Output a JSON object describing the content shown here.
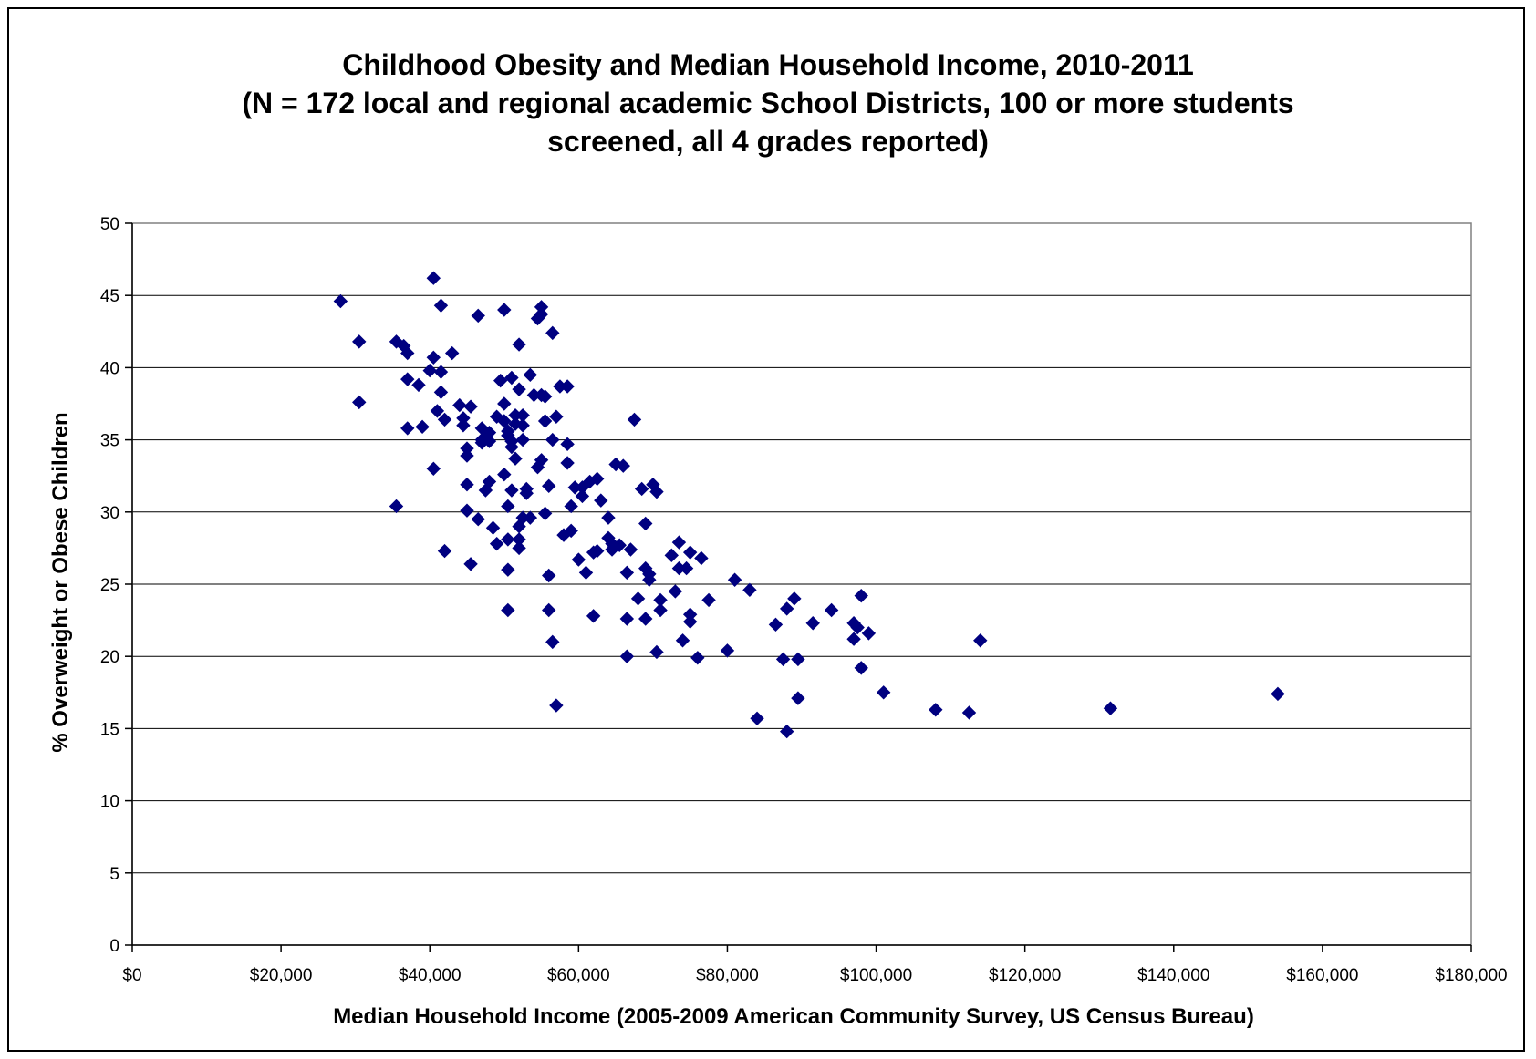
{
  "chart_data": {
    "type": "scatter",
    "title_lines": [
      "Childhood Obesity and Median Household Income, 2010-2011",
      "(N = 172 local and regional academic School Districts, 100 or more students",
      "screened, all 4 grades reported)"
    ],
    "xlabel": "Median Household Income (2005-2009 American Community Survey, US Census Bureau)",
    "ylabel": "% Overweight or Obese Children",
    "xlim": [
      0,
      180000
    ],
    "ylim": [
      0,
      50
    ],
    "x_ticks": [
      0,
      20000,
      40000,
      60000,
      80000,
      100000,
      120000,
      140000,
      160000,
      180000
    ],
    "x_tick_labels": [
      "$0",
      "$20,000",
      "$40,000",
      "$60,000",
      "$80,000",
      "$100,000",
      "$120,000",
      "$140,000",
      "$160,000",
      "$180,000"
    ],
    "y_ticks": [
      0,
      5,
      10,
      15,
      20,
      25,
      30,
      35,
      40,
      45,
      50
    ],
    "y_tick_labels": [
      "0",
      "5",
      "10",
      "15",
      "20",
      "25",
      "30",
      "35",
      "40",
      "45",
      "50"
    ],
    "grid": "horizontal",
    "marker_color": "#000080",
    "points": [
      [
        28000,
        44.6
      ],
      [
        30500,
        41.8
      ],
      [
        30500,
        37.6
      ],
      [
        35500,
        41.8
      ],
      [
        35500,
        30.4
      ],
      [
        36500,
        41.5
      ],
      [
        37000,
        41.0
      ],
      [
        37000,
        35.8
      ],
      [
        37000,
        39.2
      ],
      [
        38500,
        38.8
      ],
      [
        39000,
        35.9
      ],
      [
        40000,
        39.8
      ],
      [
        40500,
        40.7
      ],
      [
        40500,
        46.2
      ],
      [
        40500,
        33.0
      ],
      [
        41000,
        37.0
      ],
      [
        41500,
        39.7
      ],
      [
        41500,
        38.3
      ],
      [
        41500,
        44.3
      ],
      [
        42000,
        36.4
      ],
      [
        42000,
        27.3
      ],
      [
        43000,
        41.0
      ],
      [
        44000,
        37.4
      ],
      [
        44500,
        36.5
      ],
      [
        44500,
        36.0
      ],
      [
        45000,
        31.9
      ],
      [
        45000,
        30.1
      ],
      [
        45000,
        34.4
      ],
      [
        45000,
        33.9
      ],
      [
        45500,
        37.3
      ],
      [
        45500,
        26.4
      ],
      [
        46500,
        43.6
      ],
      [
        46500,
        29.5
      ],
      [
        47000,
        35.8
      ],
      [
        47000,
        35.0
      ],
      [
        47000,
        34.8
      ],
      [
        47500,
        35.2
      ],
      [
        47500,
        31.5
      ],
      [
        48000,
        34.9
      ],
      [
        48000,
        35.5
      ],
      [
        48000,
        32.1
      ],
      [
        48500,
        28.9
      ],
      [
        49000,
        27.8
      ],
      [
        49000,
        36.6
      ],
      [
        49500,
        39.1
      ],
      [
        50000,
        37.5
      ],
      [
        50000,
        36.3
      ],
      [
        50000,
        44.0
      ],
      [
        50000,
        32.6
      ],
      [
        50500,
        35.6
      ],
      [
        50500,
        35.3
      ],
      [
        50500,
        28.1
      ],
      [
        50500,
        26.0
      ],
      [
        50500,
        23.2
      ],
      [
        50500,
        30.4
      ],
      [
        51000,
        39.3
      ],
      [
        51000,
        34.9
      ],
      [
        51000,
        34.5
      ],
      [
        51000,
        31.5
      ],
      [
        51500,
        36.7
      ],
      [
        51500,
        33.7
      ],
      [
        51500,
        36.1
      ],
      [
        52000,
        29.0
      ],
      [
        52000,
        28.1
      ],
      [
        52000,
        27.5
      ],
      [
        52000,
        38.5
      ],
      [
        52000,
        41.6
      ],
      [
        52500,
        36.7
      ],
      [
        52500,
        36.0
      ],
      [
        52500,
        35.0
      ],
      [
        52500,
        29.6
      ],
      [
        53000,
        31.6
      ],
      [
        53000,
        31.3
      ],
      [
        53500,
        39.5
      ],
      [
        53500,
        29.6
      ],
      [
        54000,
        38.1
      ],
      [
        54500,
        43.4
      ],
      [
        54500,
        33.1
      ],
      [
        55000,
        38.1
      ],
      [
        55000,
        33.6
      ],
      [
        55000,
        44.2
      ],
      [
        55000,
        43.7
      ],
      [
        55500,
        38.0
      ],
      [
        55500,
        36.3
      ],
      [
        55500,
        29.9
      ],
      [
        56000,
        31.8
      ],
      [
        56000,
        25.6
      ],
      [
        56000,
        23.2
      ],
      [
        56500,
        42.4
      ],
      [
        56500,
        35.0
      ],
      [
        56500,
        21.0
      ],
      [
        57000,
        36.6
      ],
      [
        57000,
        16.6
      ],
      [
        57500,
        38.7
      ],
      [
        58000,
        28.4
      ],
      [
        58500,
        38.7
      ],
      [
        58500,
        34.7
      ],
      [
        58500,
        33.4
      ],
      [
        59000,
        28.7
      ],
      [
        59000,
        30.4
      ],
      [
        59500,
        31.7
      ],
      [
        60000,
        26.7
      ],
      [
        60500,
        31.7
      ],
      [
        60500,
        31.1
      ],
      [
        61000,
        25.8
      ],
      [
        61500,
        32.1
      ],
      [
        62000,
        27.2
      ],
      [
        62000,
        22.8
      ],
      [
        62500,
        27.3
      ],
      [
        62500,
        32.3
      ],
      [
        63000,
        30.8
      ],
      [
        64000,
        28.2
      ],
      [
        64000,
        29.6
      ],
      [
        64500,
        27.4
      ],
      [
        64500,
        27.8
      ],
      [
        65000,
        33.3
      ],
      [
        65500,
        27.7
      ],
      [
        66000,
        33.2
      ],
      [
        66500,
        25.8
      ],
      [
        66500,
        22.6
      ],
      [
        66500,
        20.0
      ],
      [
        67000,
        27.4
      ],
      [
        67500,
        36.4
      ],
      [
        68000,
        24.0
      ],
      [
        68500,
        31.6
      ],
      [
        69000,
        29.2
      ],
      [
        69000,
        26.1
      ],
      [
        69000,
        22.6
      ],
      [
        69500,
        25.3
      ],
      [
        69500,
        25.7
      ],
      [
        70000,
        31.9
      ],
      [
        70500,
        31.4
      ],
      [
        70500,
        20.3
      ],
      [
        71000,
        23.9
      ],
      [
        71000,
        23.2
      ],
      [
        72500,
        27.0
      ],
      [
        73000,
        24.5
      ],
      [
        73500,
        27.9
      ],
      [
        73500,
        26.1
      ],
      [
        74000,
        21.1
      ],
      [
        74500,
        26.1
      ],
      [
        75000,
        27.2
      ],
      [
        75000,
        22.9
      ],
      [
        75000,
        22.4
      ],
      [
        76000,
        19.9
      ],
      [
        76500,
        26.8
      ],
      [
        77500,
        23.9
      ],
      [
        80000,
        20.4
      ],
      [
        81000,
        25.3
      ],
      [
        83000,
        24.6
      ],
      [
        84000,
        15.7
      ],
      [
        86500,
        22.2
      ],
      [
        87500,
        19.8
      ],
      [
        88000,
        23.3
      ],
      [
        88000,
        14.8
      ],
      [
        89000,
        24.0
      ],
      [
        89500,
        17.1
      ],
      [
        89500,
        19.8
      ],
      [
        91500,
        22.3
      ],
      [
        94000,
        23.2
      ],
      [
        97000,
        22.3
      ],
      [
        97000,
        21.2
      ],
      [
        97500,
        22.0
      ],
      [
        98000,
        19.2
      ],
      [
        98000,
        24.2
      ],
      [
        99000,
        21.6
      ],
      [
        101000,
        17.5
      ],
      [
        108000,
        16.3
      ],
      [
        112500,
        16.1
      ],
      [
        114000,
        21.1
      ],
      [
        131500,
        16.4
      ],
      [
        154000,
        17.4
      ]
    ]
  }
}
